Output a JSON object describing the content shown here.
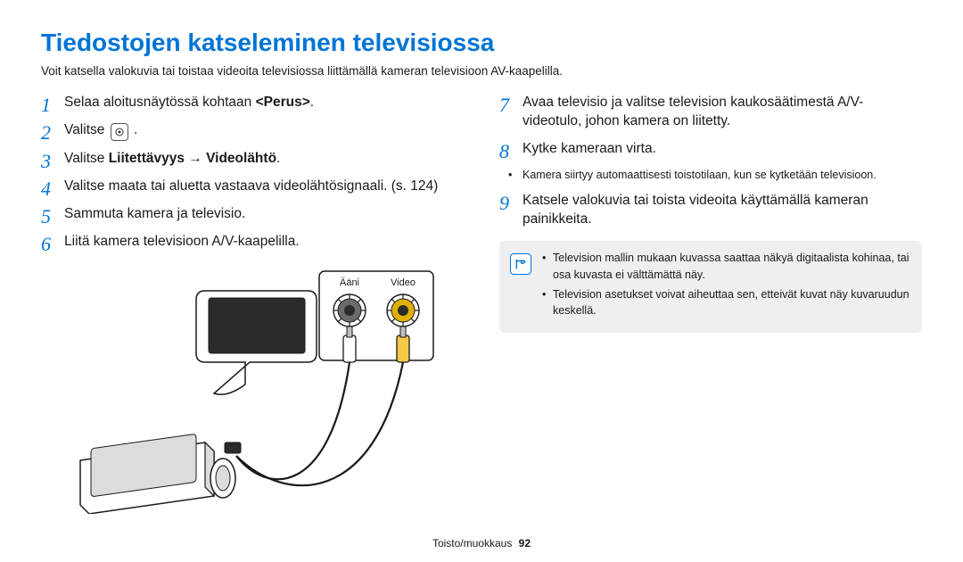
{
  "title": "Tiedostojen katseleminen televisiossa",
  "subtitle": "Voit katsella valokuvia tai toistaa videoita televisiossa liittämällä kameran televisioon AV-kaapelilla.",
  "left_start": 0,
  "right_start": 6,
  "left_steps": [
    {
      "pre": "Selaa aloitusnäytössä kohtaan ",
      "bold": "<Perus>",
      "post": "."
    },
    {
      "pre": "Valitse ",
      "icon": "circle",
      "post": " ."
    },
    {
      "pre": "Valitse ",
      "bold": "Liitettävyys → Videolähtö",
      "post": "."
    },
    {
      "pre": "Valitse maata tai aluetta vastaava videolähtösignaali. (s. 124)",
      "bold": "",
      "post": ""
    },
    {
      "pre": "Sammuta kamera ja televisio.",
      "bold": "",
      "post": ""
    },
    {
      "pre": "Liitä kamera televisioon A/V-kaapelilla.",
      "bold": "",
      "post": ""
    }
  ],
  "right_steps": [
    {
      "pre": "Avaa televisio ja valitse television kaukosäätimestä A/V-videotulo, johon kamera on liitetty.",
      "bold": "",
      "post": ""
    },
    {
      "pre": "Kytke kameraan virta.",
      "bold": "",
      "post": "",
      "sub": "Kamera siirtyy automaattisesti toistotilaan, kun se kytketään televisioon."
    },
    {
      "pre": "Katsele valokuvia tai toista videoita käyttämällä kameran painikkeita.",
      "bold": "",
      "post": ""
    }
  ],
  "note": {
    "items": [
      "Television mallin mukaan kuvassa saattaa näkyä digitaalista kohinaa, tai osa kuvasta ei välttämättä näy.",
      "Television asetukset voivat aiheuttaa sen, etteivät kuvat näy kuvaruudun keskellä."
    ]
  },
  "diagram": {
    "labels": {
      "audio": "Ääni",
      "video": "Video"
    },
    "colors": {
      "audio_plug": "#ffffff",
      "audio_ring": "#6b6b6b",
      "video_plug": "#f7c948",
      "video_ring": "#e0b000",
      "stroke": "#1a1a1a",
      "fill_light": "#ffffff",
      "shadow": "#dcdcdc"
    },
    "label_fontsize": 11
  },
  "footer": {
    "section": "Toisto/muokkaus",
    "page": "92"
  }
}
